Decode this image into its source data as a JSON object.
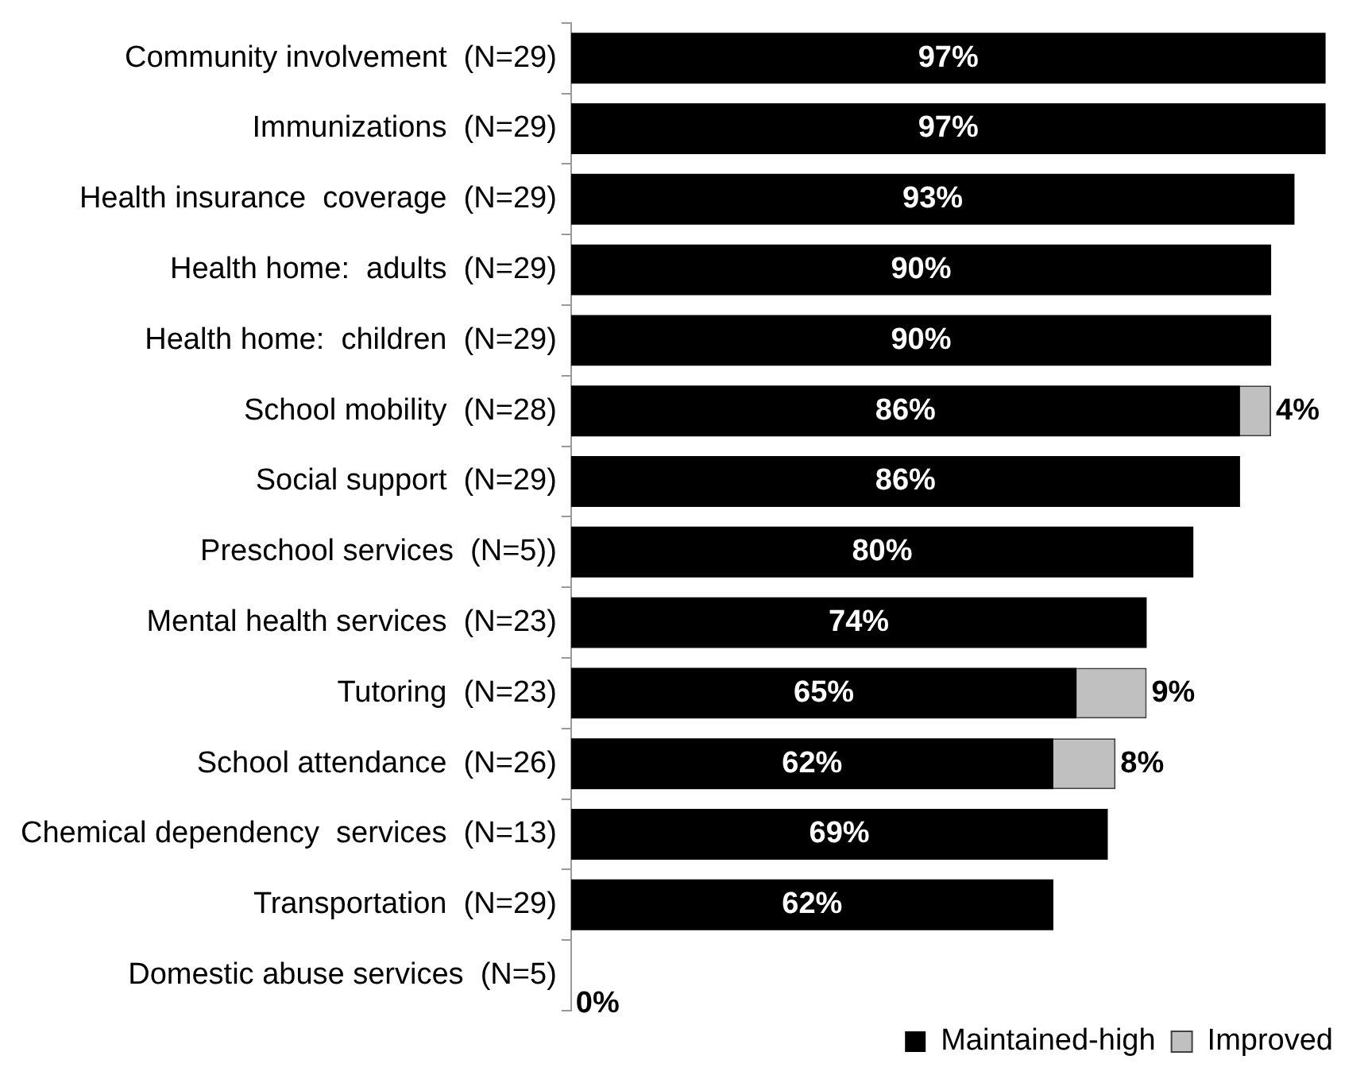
{
  "chart_data": {
    "type": "bar",
    "orientation": "horizontal",
    "stacked": true,
    "legend": "bottom right",
    "tick_labels": "y",
    "categories": [
      "Community involvement  (N=29)",
      "Immunizations  (N=29)",
      "Health insurance  coverage  (N=29)",
      "Health home:  adults  (N=29)",
      "Health home:  children  (N=29)",
      "School mobility  (N=28)",
      "Social support  (N=29)",
      "Preschool services  (N=5))",
      "Mental health services  (N=23)",
      "Tutoring  (N=23)",
      "School attendance  (N=26)",
      "Chemical dependency  services  (N=13)",
      "Transportation  (N=29)",
      "Domestic abuse services  (N=5)"
    ],
    "series": [
      {
        "name": "Maintained-high",
        "color": "#000000",
        "values": [
          97,
          97,
          93,
          90,
          90,
          86,
          86,
          80,
          74,
          65,
          62,
          69,
          62,
          0
        ],
        "value_labels": [
          "97%",
          "97%",
          "93%",
          "90%",
          "90%",
          "86%",
          "86%",
          "80%",
          "74%",
          "65%",
          "62%",
          "69%",
          "62%",
          "0%"
        ]
      },
      {
        "name": "Improved",
        "color": "#c0c0c0",
        "values": [
          null,
          null,
          null,
          null,
          null,
          4,
          null,
          null,
          null,
          9,
          8,
          null,
          null,
          null
        ],
        "value_labels": [
          null,
          null,
          null,
          null,
          null,
          "4%",
          null,
          null,
          null,
          "9%",
          "8%",
          null,
          null,
          null
        ]
      }
    ]
  }
}
